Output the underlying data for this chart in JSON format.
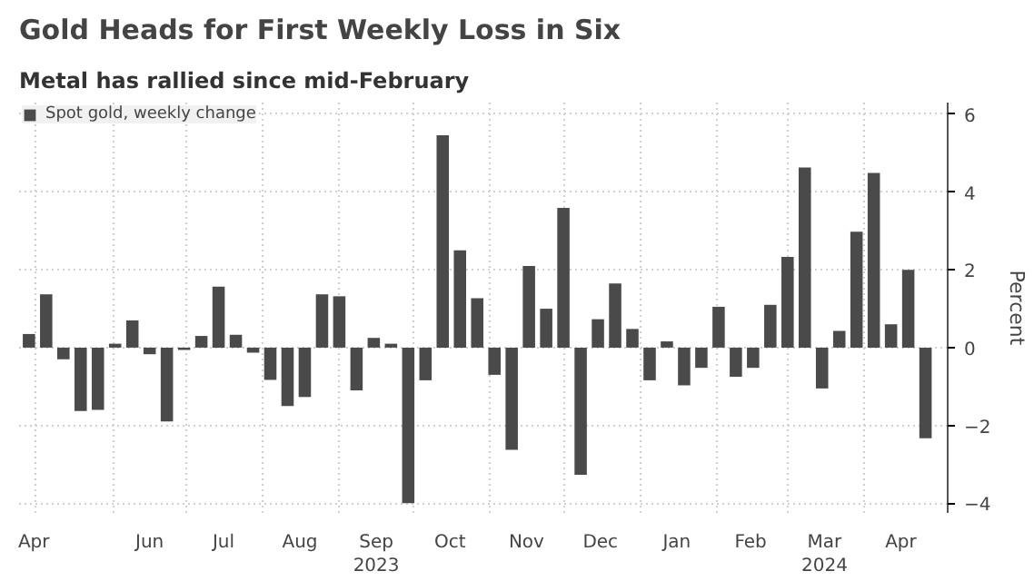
{
  "chart_data": {
    "type": "bar",
    "title": "Gold Heads for First Weekly Loss in Six",
    "subtitle": "Metal has rallied since mid-February",
    "ylabel": "Percent",
    "x": [
      "2023-04-28",
      "2023-05-05",
      "2023-05-12",
      "2023-05-19",
      "2023-05-26",
      "2023-06-02",
      "2023-06-09",
      "2023-06-16",
      "2023-06-23",
      "2023-06-30",
      "2023-07-07",
      "2023-07-14",
      "2023-07-21",
      "2023-07-28",
      "2023-08-04",
      "2023-08-11",
      "2023-08-18",
      "2023-08-25",
      "2023-09-01",
      "2023-09-08",
      "2023-09-15",
      "2023-09-22",
      "2023-09-29",
      "2023-10-06",
      "2023-10-13",
      "2023-10-20",
      "2023-10-27",
      "2023-11-03",
      "2023-11-10",
      "2023-11-17",
      "2023-11-24",
      "2023-12-01",
      "2023-12-08",
      "2023-12-15",
      "2023-12-22",
      "2023-12-29",
      "2024-01-05",
      "2024-01-12",
      "2024-01-19",
      "2024-01-26",
      "2024-02-02",
      "2024-02-09",
      "2024-02-16",
      "2024-02-23",
      "2024-03-01",
      "2024-03-08",
      "2024-03-15",
      "2024-03-22",
      "2024-03-29",
      "2024-04-05",
      "2024-04-12",
      "2024-04-19",
      "2024-04-26"
    ],
    "series": [
      {
        "name": "Spot gold, weekly change",
        "color": "#4a4a4a",
        "values": [
          0.35,
          1.37,
          -0.3,
          -1.63,
          -1.6,
          0.1,
          0.7,
          -0.17,
          -1.9,
          -0.06,
          0.3,
          1.57,
          0.33,
          -0.13,
          -0.83,
          -1.5,
          -1.27,
          1.37,
          1.32,
          -1.1,
          0.25,
          0.1,
          -4.0,
          -0.84,
          5.46,
          2.5,
          1.27,
          -0.7,
          -2.63,
          2.1,
          1.0,
          3.59,
          -3.27,
          0.73,
          1.65,
          0.48,
          -0.84,
          0.16,
          -0.97,
          -0.52,
          1.05,
          -0.75,
          -0.52,
          1.1,
          2.33,
          4.63,
          -1.05,
          0.43,
          2.98,
          4.49,
          0.6,
          2.0,
          -2.33
        ]
      }
    ],
    "xlim": [
      "2023-04-24",
      "2024-05-05"
    ],
    "xticks": [
      {
        "value": "2023-04-30",
        "label": "Apr"
      },
      {
        "value": "2023-05-01",
        "label": null
      },
      {
        "value": "2023-06-01",
        "label": null
      },
      {
        "value": "2023-06-16",
        "label": "Jun"
      },
      {
        "value": "2023-07-01",
        "label": null
      },
      {
        "value": "2023-07-16",
        "label": "Jul"
      },
      {
        "value": "2023-08-01",
        "label": null
      },
      {
        "value": "2023-08-16",
        "label": "Aug"
      },
      {
        "value": "2023-09-01",
        "label": null
      },
      {
        "value": "2023-09-16",
        "label": "Sep\n2023"
      },
      {
        "value": "2023-10-01",
        "label": null
      },
      {
        "value": "2023-10-16",
        "label": "Oct"
      },
      {
        "value": "2023-11-01",
        "label": null
      },
      {
        "value": "2023-11-16",
        "label": "Nov"
      },
      {
        "value": "2023-12-01",
        "label": null
      },
      {
        "value": "2023-12-16",
        "label": "Dec"
      },
      {
        "value": "2024-01-01",
        "label": null
      },
      {
        "value": "2024-01-16",
        "label": "Jan"
      },
      {
        "value": "2024-02-01",
        "label": null
      },
      {
        "value": "2024-02-15",
        "label": "Feb"
      },
      {
        "value": "2024-03-01",
        "label": null
      },
      {
        "value": "2024-03-16",
        "label": "Mar\n2024"
      },
      {
        "value": "2024-04-01",
        "label": null
      },
      {
        "value": "2024-04-16",
        "label": "Apr"
      }
    ],
    "ylim": [
      -4.25,
      6.3
    ],
    "yticks": [
      -4,
      -2,
      0,
      2,
      4,
      6
    ],
    "grid": true,
    "legend": "top left"
  }
}
